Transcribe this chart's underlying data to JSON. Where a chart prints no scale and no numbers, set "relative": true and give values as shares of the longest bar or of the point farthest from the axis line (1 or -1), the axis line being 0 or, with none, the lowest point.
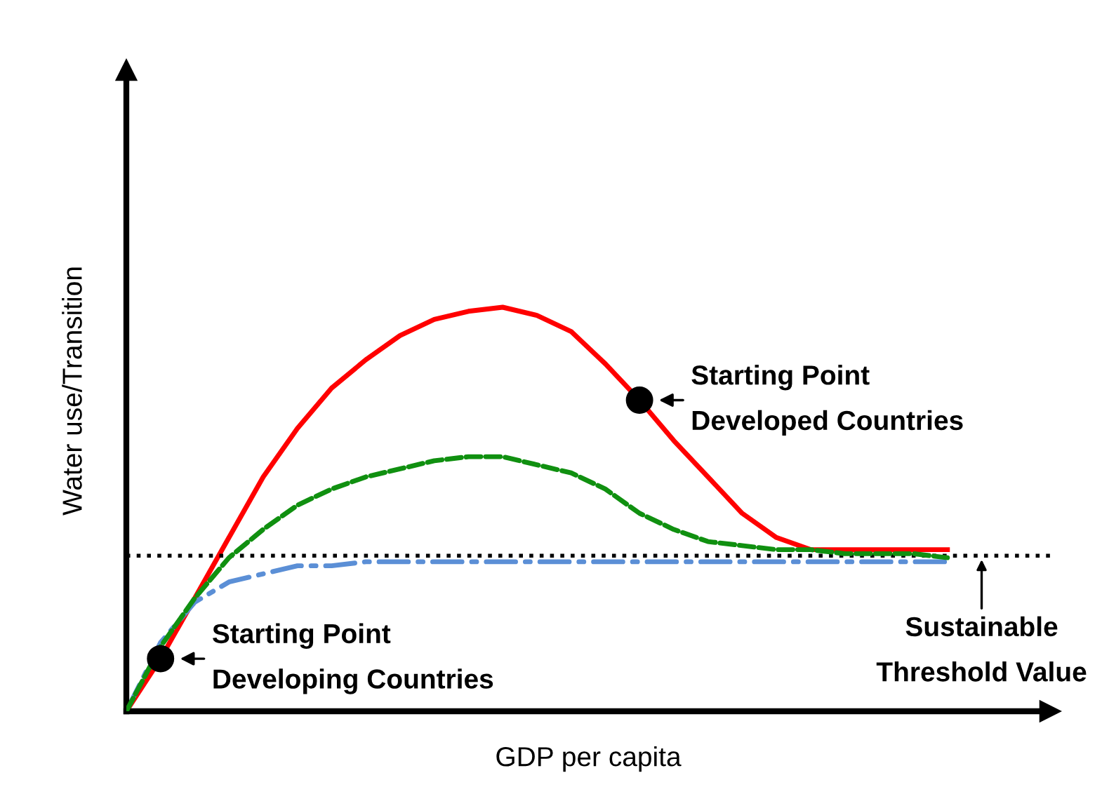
{
  "chart_data": {
    "type": "line",
    "relative": true,
    "xlabel": "GDP per capita",
    "ylabel": "Water use/Transition",
    "categories": [
      null,
      null,
      null,
      null,
      null,
      null,
      null,
      null,
      null,
      null,
      null,
      null,
      null,
      null,
      null,
      null,
      null,
      null,
      null,
      null,
      null,
      null,
      null,
      null,
      null
    ],
    "series": [
      {
        "color": "#ff0000",
        "line_style": "solid",
        "values": [
          0,
          0.13,
          0.28,
          0.43,
          0.58,
          0.7,
          0.8,
          0.87,
          0.93,
          0.97,
          0.99,
          1.0,
          0.98,
          0.94,
          0.86,
          0.77,
          0.67,
          0.58,
          0.49,
          0.43,
          0.4,
          0.4,
          0.4,
          0.4,
          0.4
        ]
      },
      {
        "color": "#109010",
        "line_style": "dashed",
        "values": [
          0,
          0.16,
          0.28,
          0.38,
          0.45,
          0.51,
          0.55,
          0.58,
          0.6,
          0.62,
          0.63,
          0.63,
          0.61,
          0.59,
          0.55,
          0.49,
          0.45,
          0.42,
          0.41,
          0.4,
          0.4,
          0.39,
          0.39,
          0.39,
          0.38
        ]
      },
      {
        "color": "#5b8fd6",
        "line_style": "dashdot",
        "values": [
          0,
          0.17,
          0.27,
          0.32,
          0.34,
          0.36,
          0.36,
          0.37,
          0.37,
          0.37,
          0.37,
          0.37,
          0.37,
          0.37,
          0.37,
          0.37,
          0.37,
          0.37,
          0.37,
          0.37,
          0.37,
          0.37,
          0.37,
          0.37,
          0.37
        ]
      }
    ],
    "ref_lines": [
      {
        "axis": "y",
        "value": 0.385,
        "color": "#000000",
        "line_style": "dotted"
      }
    ],
    "annotations": [
      "Starting Point\nDeveloping Countries",
      "Starting Point\nDeveloped Countries",
      "Sustainable\nThreshold Value"
    ],
    "tick_labels": false
  }
}
